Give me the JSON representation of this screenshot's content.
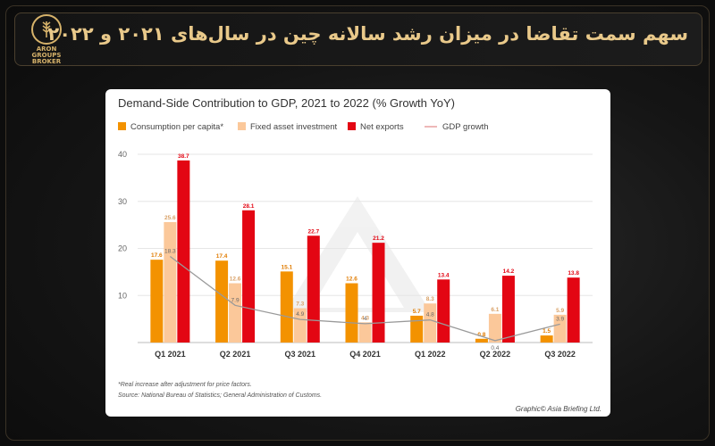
{
  "header": {
    "title": "سهم سمت تقاضا در میزان رشد سالانه  چین در سال‌های ۲۰۲۱ و ۲۰۲۲",
    "logo_text": "ARON\nGROUPS\nBROKER"
  },
  "chart_data": {
    "type": "bar",
    "title": "Demand-Side Contribution to GDP, 2021 to 2022 (% Growth YoY)",
    "categories": [
      "Q1 2021",
      "Q2 2021",
      "Q3 2021",
      "Q4 2021",
      "Q1 2022",
      "Q2 2022",
      "Q3 2022"
    ],
    "series": [
      {
        "name": "Consumption per capita*",
        "color": "#f39200",
        "values": [
          17.6,
          17.4,
          15.1,
          12.6,
          5.7,
          0.8,
          1.5
        ]
      },
      {
        "name": "Fixed asset investment",
        "color": "#fbc89a",
        "values": [
          25.6,
          12.6,
          7.3,
          4.3,
          8.3,
          6.1,
          5.9
        ]
      },
      {
        "name": "Net exports",
        "color": "#e30613",
        "values": [
          38.7,
          28.1,
          22.7,
          21.2,
          13.4,
          14.2,
          13.8
        ]
      }
    ],
    "line": {
      "name": "GDP growth",
      "color": "#9a9a9a",
      "values": [
        18.3,
        7.9,
        4.9,
        4,
        4.8,
        0.4,
        3.9
      ]
    },
    "ylim": [
      0,
      40
    ],
    "yticks": [
      10,
      20,
      30,
      40
    ],
    "legend_position": "top",
    "footnote": "*Real increase after adjustment for price factors.",
    "source": "Source: National Bureau of Statistics; General Administration of Customs.",
    "credit": "Graphic© Asia Briefing Ltd."
  }
}
